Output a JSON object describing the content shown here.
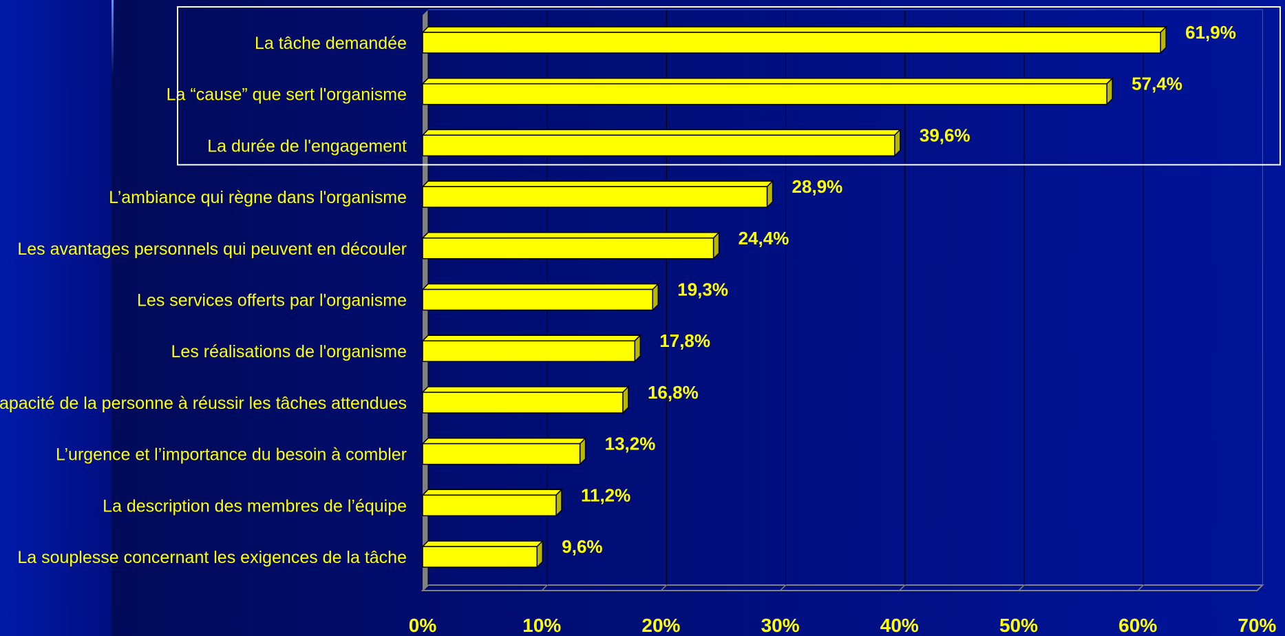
{
  "chart_data": {
    "type": "bar",
    "orientation": "horizontal",
    "categories": [
      "La tâche demandée",
      "La “cause” que sert l'organisme",
      "La durée de l'engagement",
      "L’ambiance qui règne dans l'organisme",
      "Les avantages personnels qui peuvent en découler",
      "Les services offerts par l'organisme",
      "Les réalisations de l'organisme",
      "La capacité de la personne à réussir les tâches attendues",
      "L’urgence et l’importance du besoin à combler",
      "La description des membres de l’équipe",
      "La souplesse concernant les exigences de la tâche"
    ],
    "values": [
      61.9,
      57.4,
      39.6,
      28.9,
      24.4,
      19.3,
      17.8,
      16.8,
      13.2,
      11.2,
      9.6
    ],
    "value_labels": [
      "61,9%",
      "57,4%",
      "39,6%",
      "28,9%",
      "24,4%",
      "19,3%",
      "17,8%",
      "16,8%",
      "13,2%",
      "11,2%",
      "9,6%"
    ],
    "xlim": [
      0,
      70
    ],
    "x_ticks": [
      0,
      10,
      20,
      30,
      40,
      50,
      60,
      70
    ],
    "x_tick_labels": [
      "0%",
      "10%",
      "20%",
      "30%",
      "40%",
      "50%",
      "60%",
      "70%"
    ],
    "grid": true,
    "highlight_box_categories": 3,
    "colors": {
      "bar": "#ffff00",
      "bar_dark": "#b8b800",
      "text": "#ffff00",
      "grid": "#000000",
      "wall": "#808080",
      "highlight_box": "#ffffff"
    }
  }
}
